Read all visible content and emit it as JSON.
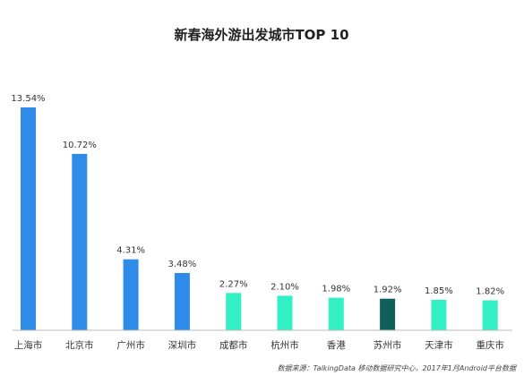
{
  "chart_data": {
    "type": "bar",
    "title": "新春海外游出发城市TOP 10",
    "categories": [
      "上海市",
      "北京市",
      "广州市",
      "深圳市",
      "成都市",
      "杭州市",
      "香港",
      "苏州市",
      "天津市",
      "重庆市"
    ],
    "values": [
      13.54,
      10.72,
      4.31,
      3.48,
      2.27,
      2.1,
      1.98,
      1.92,
      1.85,
      1.82
    ],
    "value_labels": [
      "13.54%",
      "10.72%",
      "4.31%",
      "3.48%",
      "2.27%",
      "2.10%",
      "1.98%",
      "1.92%",
      "1.85%",
      "1.82%"
    ],
    "ylim": [
      0,
      13.54
    ],
    "grid": false,
    "bar_colors": [
      "#2e8be8",
      "#2e8be8",
      "#2e8be8",
      "#2e8be8",
      "#33f0c4",
      "#33f0c4",
      "#33f0c4",
      "#0e6058",
      "#33f0c4",
      "#33f0c4"
    ],
    "axis_color": "#bbbbbb",
    "source": "数据来源：TalkingData 移动数据研究中心，2017年1月Android平台数据"
  }
}
